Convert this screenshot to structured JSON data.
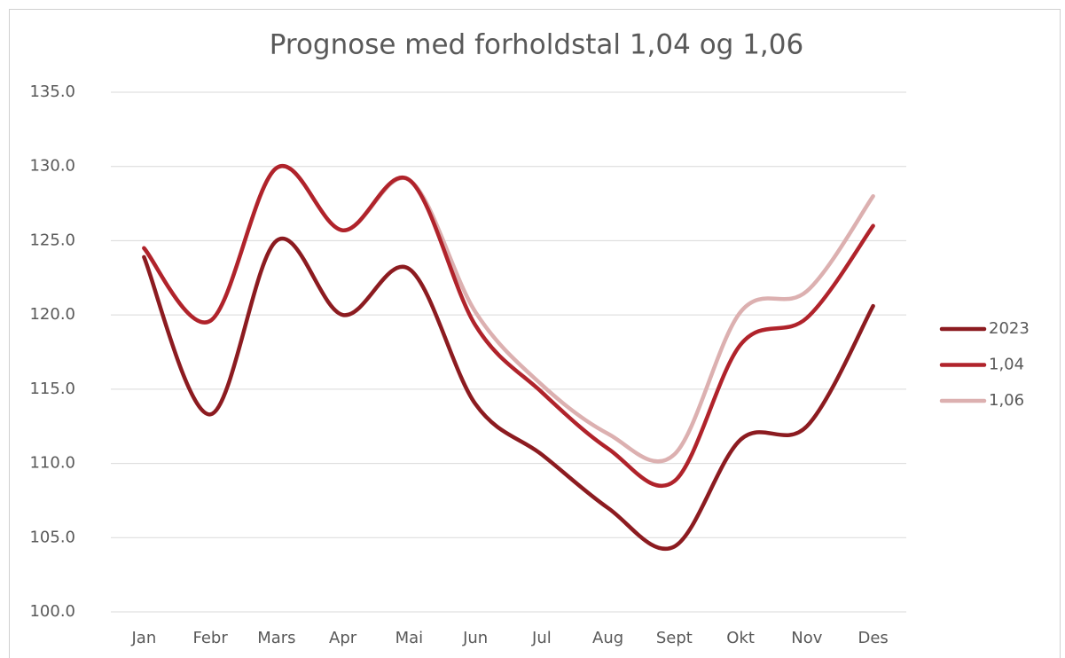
{
  "chart_data": {
    "type": "line",
    "title": "Prognose med forholdstal 1,04 og 1,06",
    "categories": [
      "Jan",
      "Febr",
      "Mars",
      "Apr",
      "Mai",
      "Jun",
      "Jul",
      "Aug",
      "Sept",
      "Okt",
      "Nov",
      "Des"
    ],
    "series": [
      {
        "name": "2023",
        "color": "#8c1b20",
        "values": [
          123.9,
          113.3,
          125.0,
          120.0,
          123.1,
          114.0,
          110.6,
          107.0,
          104.4,
          111.6,
          112.5,
          120.6
        ]
      },
      {
        "name": "1,04",
        "color": "#b0232b",
        "values": [
          124.5,
          119.6,
          129.9,
          125.7,
          129.1,
          119.3,
          114.8,
          111.0,
          108.8,
          118.0,
          119.8,
          126.0
        ]
      },
      {
        "name": "1,06",
        "color": "#dcb0b0",
        "values": [
          124.5,
          119.6,
          129.9,
          125.7,
          129.1,
          120.2,
          115.3,
          112.0,
          110.6,
          120.2,
          121.6,
          128.0
        ]
      }
    ],
    "ylim": [
      100,
      135
    ],
    "yticks": [
      {
        "value": 100,
        "label": "100.0"
      },
      {
        "value": 105,
        "label": "105.0"
      },
      {
        "value": 110,
        "label": "110.0"
      },
      {
        "value": 115,
        "label": "115.0"
      },
      {
        "value": 120,
        "label": "120.0"
      },
      {
        "value": 125,
        "label": "125.0"
      },
      {
        "value": 130,
        "label": "130.0"
      },
      {
        "value": 135,
        "label": "135.0"
      }
    ],
    "grid": true,
    "smooth": true,
    "legend": "right"
  }
}
